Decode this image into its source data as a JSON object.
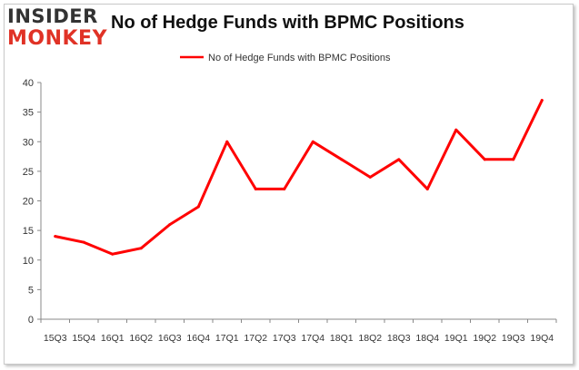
{
  "brand": {
    "line1": "INSIDER",
    "line2": "MONKEY",
    "accent": "#e03226"
  },
  "chart_data": {
    "type": "line",
    "title": "No of Hedge Funds with BPMC Positions",
    "xlabel": "",
    "ylabel": "",
    "legend_position": "top",
    "grid": false,
    "categories": [
      "15Q3",
      "15Q4",
      "16Q1",
      "16Q2",
      "16Q3",
      "16Q4",
      "17Q1",
      "17Q2",
      "17Q3",
      "17Q4",
      "18Q1",
      "18Q2",
      "18Q3",
      "18Q4",
      "19Q1",
      "19Q2",
      "19Q3",
      "19Q4"
    ],
    "series": [
      {
        "name": "No of Hedge Funds with BPMC Positions",
        "color": "#ff0000",
        "values": [
          14,
          13,
          11,
          12,
          16,
          19,
          30,
          22,
          22,
          30,
          27,
          24,
          27,
          22,
          32,
          27,
          27,
          37
        ]
      }
    ],
    "ylim": [
      0,
      40
    ],
    "yticks": [
      0,
      5,
      10,
      15,
      20,
      25,
      30,
      35,
      40
    ]
  }
}
